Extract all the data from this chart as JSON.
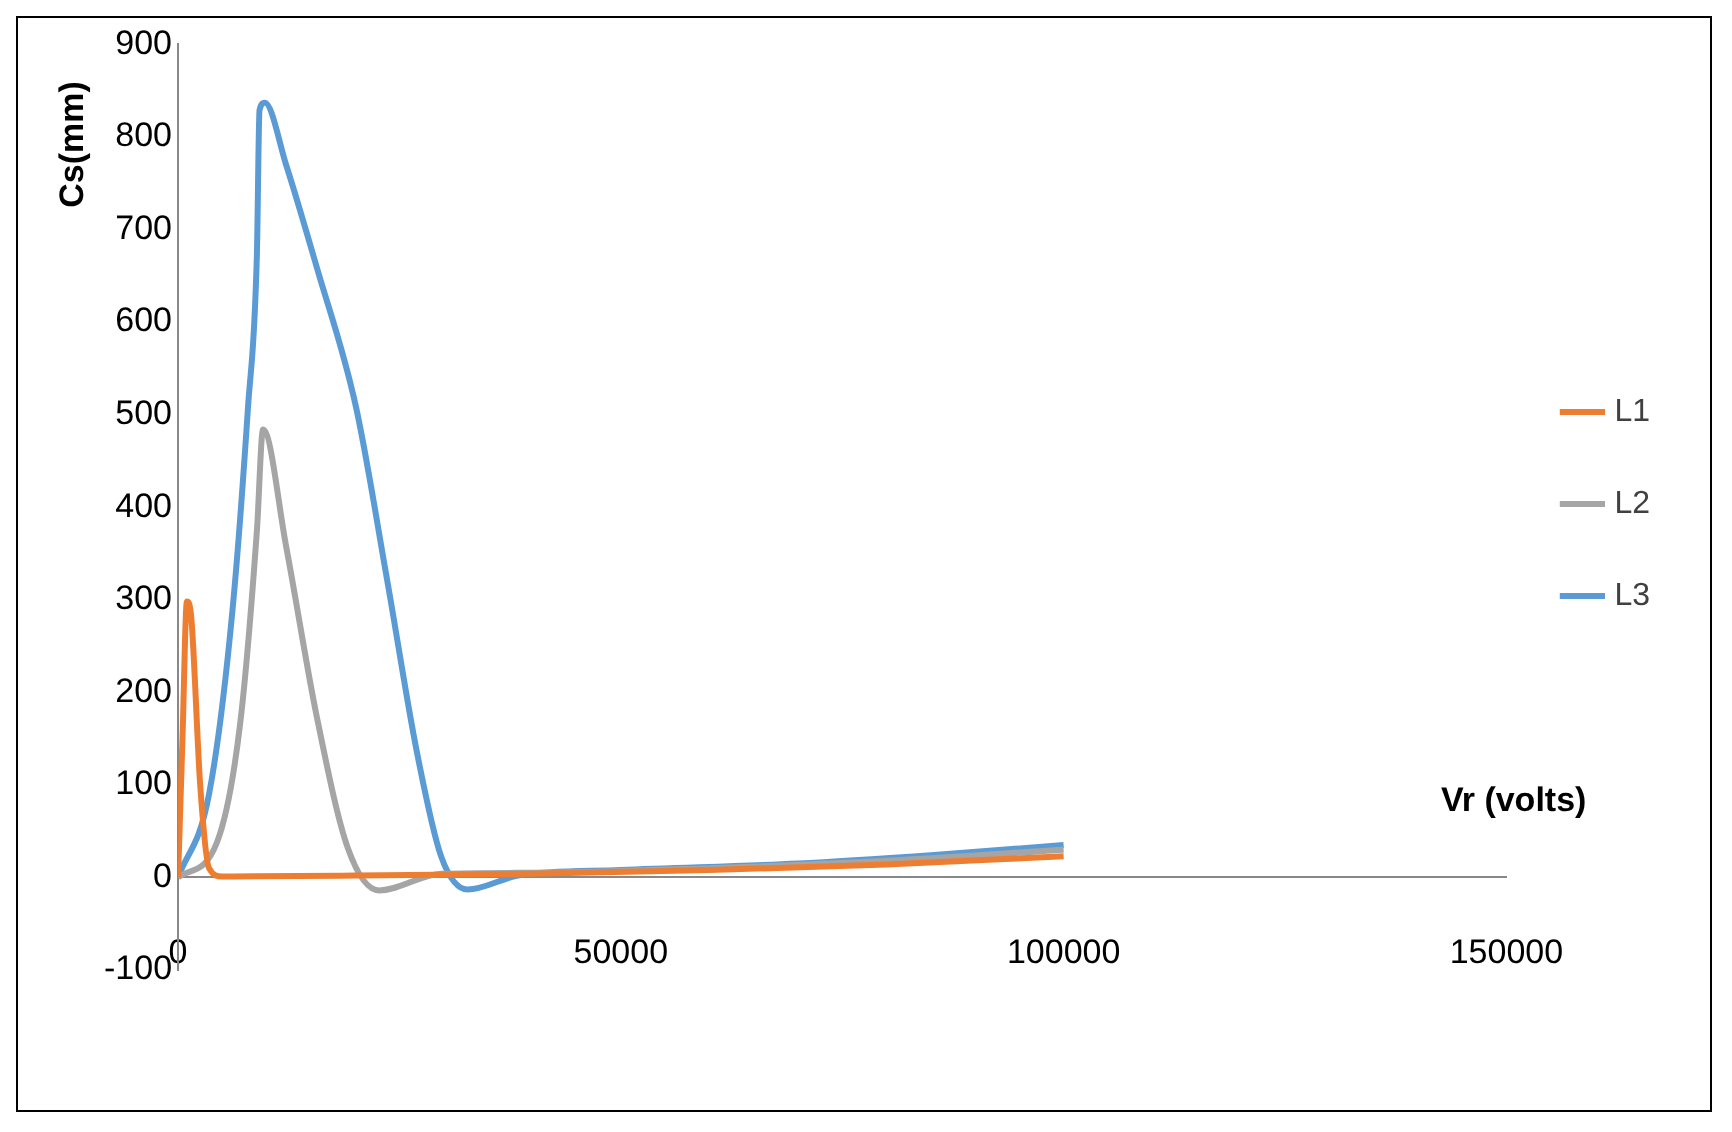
{
  "chart_data": {
    "type": "line",
    "xlabel": "Vr (volts)",
    "ylabel": "Cs(mm)",
    "xlim": [
      0,
      150000
    ],
    "xticks": [
      0,
      50000,
      100000,
      150000
    ],
    "ylim": [
      -100,
      900
    ],
    "yticks": [
      -100,
      0,
      100,
      200,
      300,
      400,
      500,
      600,
      700,
      800,
      900
    ],
    "grid": false,
    "legend": "right",
    "marker": "none",
    "series": [
      {
        "name": "L1",
        "color": "#ed7d31",
        "x": [
          0,
          500,
          1000,
          1500,
          2500,
          3500,
          5000,
          20000,
          40000,
          60000,
          80000,
          100000
        ],
        "values": [
          0,
          150,
          298,
          280,
          100,
          10,
          1,
          2,
          4,
          8,
          14,
          23
        ]
      },
      {
        "name": "L2",
        "color": "#a5a5a5",
        "x": [
          0,
          4400,
          7000,
          8900,
          9600,
          12200,
          15700,
          19200,
          22700,
          29700,
          40000,
          60000,
          80000,
          100000
        ],
        "values": [
          0,
          38,
          165,
          374,
          484,
          358,
          172,
          31,
          -14,
          4,
          5,
          10,
          18,
          30
        ]
      },
      {
        "name": "L3",
        "color": "#5b9bd5",
        "x": [
          0,
          3500,
          6100,
          7900,
          8900,
          9200,
          9800,
          12200,
          15700,
          20100,
          23600,
          27000,
          29700,
          32700,
          38400,
          50000,
          70000,
          85000,
          100000
        ],
        "values": [
          0,
          90,
          284,
          508,
          672,
          829,
          837,
          770,
          658,
          508,
          322,
          134,
          23,
          -13,
          2,
          8,
          15,
          24,
          35
        ]
      }
    ]
  }
}
